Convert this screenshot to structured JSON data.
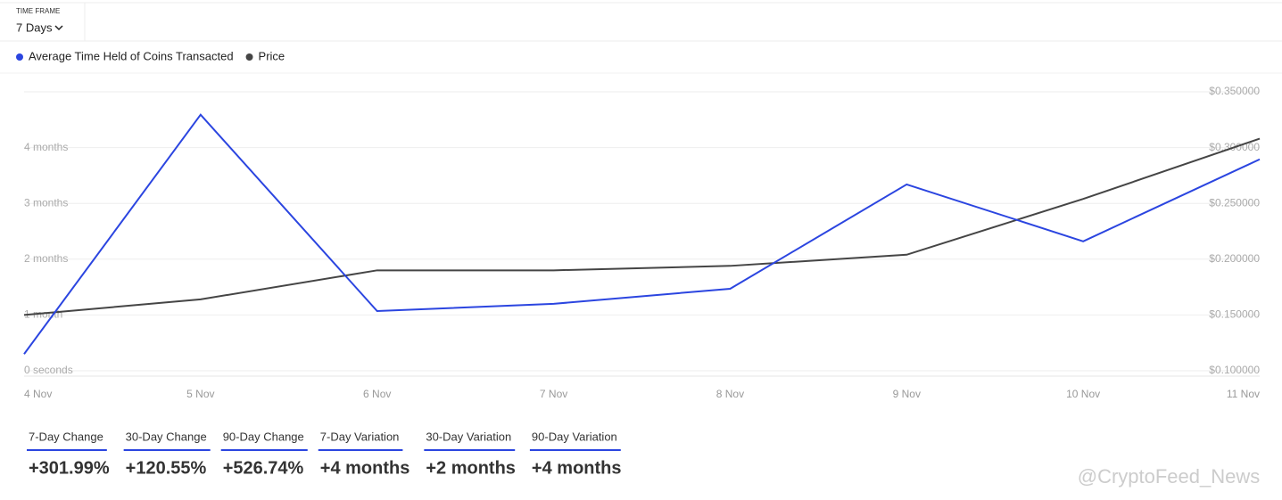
{
  "header": {
    "time_frame_label": "TIME FRAME",
    "time_frame_value": "7 Days"
  },
  "chart_data": {
    "type": "line",
    "categories": [
      "4 Nov",
      "5 Nov",
      "6 Nov",
      "7 Nov",
      "8 Nov",
      "9 Nov",
      "10 Nov",
      "11 Nov"
    ],
    "series": [
      {
        "name": "Average Time Held of Coins Transacted",
        "color": "#2b45e0",
        "values": [
          0.3,
          4.59,
          1.07,
          1.2,
          1.47,
          3.34,
          2.32,
          3.79
        ]
      },
      {
        "name": "Price",
        "color": "#454545",
        "axis": "y2",
        "values": [
          0.15,
          0.164,
          0.19,
          0.19,
          0.194,
          0.204,
          0.254,
          0.308
        ]
      }
    ],
    "ylim": [
      0,
      5
    ],
    "yticks": [
      {
        "value": 0,
        "label": "0 seconds"
      },
      {
        "value": 1,
        "label": "1 month"
      },
      {
        "value": 2,
        "label": "2 months"
      },
      {
        "value": 3,
        "label": "3 months"
      },
      {
        "value": 4,
        "label": "4 months"
      }
    ],
    "y2lim": [
      0.1,
      0.35
    ],
    "y2ticks": [
      {
        "value": 0.1,
        "label": "$0.100000"
      },
      {
        "value": 0.15,
        "label": "$0.150000"
      },
      {
        "value": 0.2,
        "label": "$0.200000"
      },
      {
        "value": 0.25,
        "label": "$0.250000"
      },
      {
        "value": 0.3,
        "label": "$0.300000"
      },
      {
        "value": 0.35,
        "label": "$0.350000"
      }
    ],
    "grid": true
  },
  "stats": [
    {
      "label": "7-Day Change",
      "value": "+301.99%"
    },
    {
      "label": "30-Day Change",
      "value": "+120.55%"
    },
    {
      "label": "90-Day Change",
      "value": "+526.74%"
    },
    {
      "label": "7-Day Variation",
      "value": "+4 months"
    },
    {
      "label": "30-Day Variation",
      "value": "+2 months"
    },
    {
      "label": "90-Day Variation",
      "value": "+4 months"
    }
  ],
  "watermark": "@CryptoFeed_News"
}
